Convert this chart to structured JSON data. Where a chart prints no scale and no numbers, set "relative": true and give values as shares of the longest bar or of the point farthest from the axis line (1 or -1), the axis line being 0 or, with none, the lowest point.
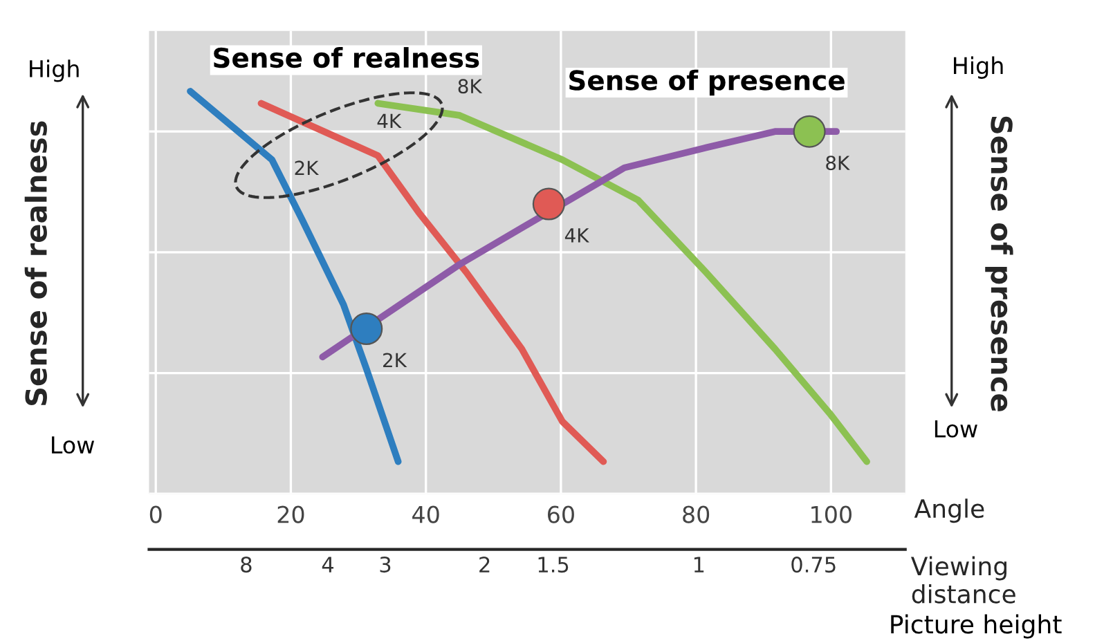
{
  "chart_data": {
    "type": "line",
    "relative": true,
    "xlabel": "Angle",
    "ylabel": "Sense of realness",
    "y2label": "Sense of presence",
    "x2label": "Viewing distance",
    "xlim": [
      -1,
      111
    ],
    "xticks": [
      0,
      20,
      40,
      60,
      80,
      100
    ],
    "grid": true,
    "line_style": "solid",
    "series": [
      {
        "color": "#2e7ebf",
        "x": [
          5.1,
          17.2,
          21.7,
          27.8,
          31.2,
          35.9
        ],
        "values": [
          1.0,
          0.83,
          0.68,
          0.47,
          0.31,
          0.08
        ]
      },
      {
        "color": "#e05a55",
        "x": [
          15.6,
          32.9,
          38.9,
          46.0,
          54.2,
          60.2,
          66.3
        ],
        "values": [
          0.97,
          0.84,
          0.7,
          0.55,
          0.36,
          0.18,
          0.08
        ]
      },
      {
        "color": "#8cc152",
        "x": [
          32.9,
          45.0,
          60.2,
          71.4,
          81.5,
          91.7,
          99.8,
          105.3
        ],
        "values": [
          0.97,
          0.94,
          0.83,
          0.73,
          0.55,
          0.36,
          0.2,
          0.08
        ]
      },
      {
        "color": "#8e5ba8",
        "x": [
          24.7,
          45.0,
          69.4,
          81.5,
          91.7,
          100.8
        ],
        "values": [
          0.34,
          0.57,
          0.81,
          0.86,
          0.9,
          0.9
        ]
      },
      {
        "type": "scatter",
        "marker": "circle",
        "x": [
          31.2,
          58.2,
          96.8
        ],
        "values": [
          0.41,
          0.72,
          0.9
        ],
        "colors": [
          "#2e7ebf",
          "#e05a55",
          "#8cc152"
        ]
      }
    ],
    "annotations": [
      {
        "text": "2K",
        "x": 31.2,
        "y": 0.41
      },
      {
        "text": "4K",
        "x": 58.2,
        "y": 0.72
      },
      {
        "text": "8K",
        "x": 96.8,
        "y": 0.9
      },
      "2K",
      "4K",
      "8K",
      "Sense of realness",
      "Sense of presence",
      "High",
      "Low",
      "High",
      "Low",
      "Picture height",
      "8",
      "4",
      "3",
      "2",
      "1.5",
      "1",
      "0.75"
    ]
  }
}
